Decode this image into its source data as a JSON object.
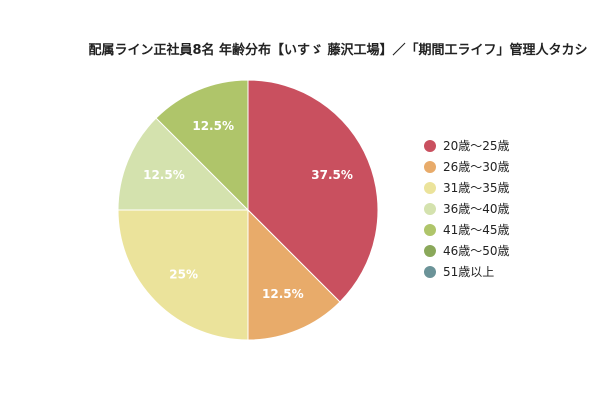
{
  "chart_data": {
    "type": "pie",
    "title": "配属ライン正社員8名 年齢分布【いすゞ 藤沢工場】／「期間工ライフ」管理人タカシ",
    "categories": [
      "20歳〜25歳",
      "26歳〜30歳",
      "31歳〜35歳",
      "36歳〜40歳",
      "41歳〜45歳",
      "46歳〜50歳",
      "51歳以上"
    ],
    "values": [
      37.5,
      12.5,
      25,
      12.5,
      12.5,
      0,
      0
    ],
    "labels": [
      "37.5%",
      "12.5%",
      "25%",
      "12.5%",
      "12.5%",
      "",
      ""
    ],
    "colors": [
      "#C9505F",
      "#E8AB6A",
      "#EBE39B",
      "#D4E2AE",
      "#AFC56A",
      "#8AA85A",
      "#6B9398"
    ],
    "legend_position": "right"
  }
}
